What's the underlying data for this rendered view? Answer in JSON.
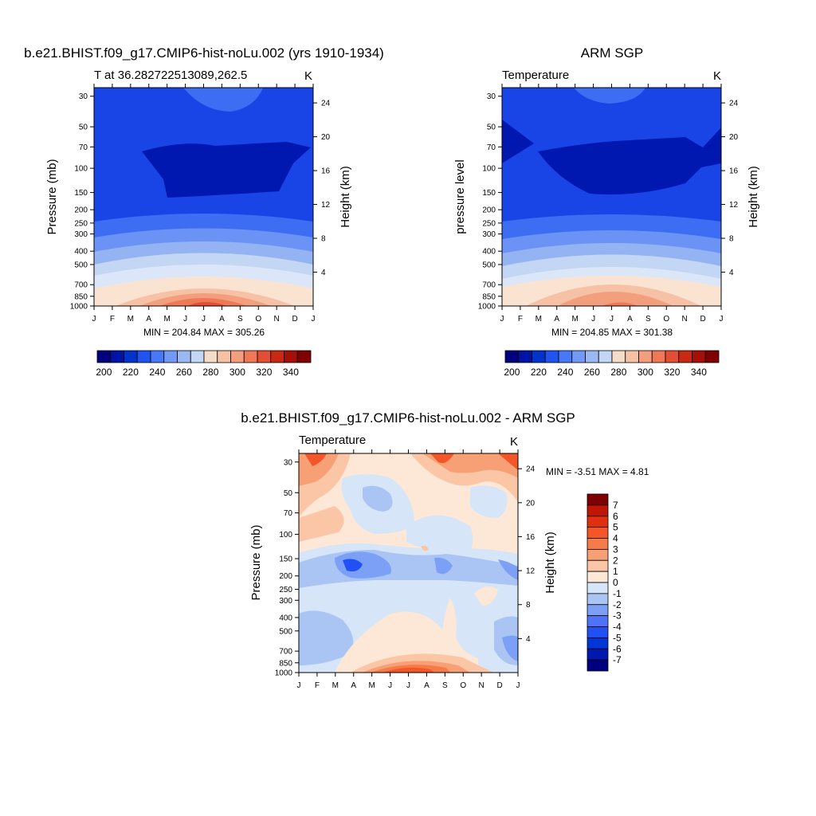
{
  "panels": [
    {
      "title": "b.e21.BHIST.f09_g17.CMIP6-hist-noLu.002 (yrs 1910-1934)",
      "left_label": "T at 36.282722513089,262.5",
      "units": "K",
      "ylabel": "Pressure (mb)",
      "y2label": "Height (km)",
      "minmax": "MIN = 204.84 MAX = 305.26"
    },
    {
      "title": "ARM SGP",
      "left_label": "Temperature",
      "units": "K",
      "ylabel": "pressure level",
      "y2label": "Height (km)",
      "minmax": "MIN = 204.85 MAX = 301.38"
    },
    {
      "title": "b.e21.BHIST.f09_g17.CMIP6-hist-noLu.002 - ARM SGP",
      "left_label": "Temperature",
      "units": "K",
      "ylabel": "Pressure (mb)",
      "y2label": "Height (km)",
      "minmax": "MIN =  -3.51 MAX =   4.81"
    }
  ],
  "chart_data": [
    {
      "type": "heatmap",
      "title": "b.e21.BHIST.f09_g17.CMIP6-hist-noLu.002 (yrs 1910-1934)",
      "subtitle": "T at 36.282722513089,262.5",
      "units": "K",
      "ylabel": "Pressure (mb)",
      "y2label": "Height (km)",
      "x_ticks": [
        "J",
        "F",
        "M",
        "A",
        "M",
        "J",
        "J",
        "A",
        "S",
        "O",
        "N",
        "D",
        "J"
      ],
      "y_ticks": [
        30,
        50,
        70,
        100,
        150,
        200,
        250,
        300,
        400,
        500,
        700,
        850,
        1000
      ],
      "y2_ticks": [
        24,
        20,
        16,
        12,
        8,
        4
      ],
      "y_scale": "log",
      "ylim": [
        1000,
        26
      ],
      "colorbar_ticks": [
        200,
        220,
        240,
        260,
        280,
        300,
        320,
        340
      ],
      "min": 204.84,
      "max": 305.26
    },
    {
      "type": "heatmap",
      "title": "ARM SGP",
      "subtitle": "Temperature",
      "units": "K",
      "ylabel": "pressure level",
      "y2label": "Height (km)",
      "x_ticks": [
        "J",
        "F",
        "M",
        "A",
        "M",
        "J",
        "J",
        "A",
        "S",
        "O",
        "N",
        "D",
        "J"
      ],
      "y_ticks": [
        30,
        50,
        70,
        100,
        150,
        200,
        250,
        300,
        400,
        500,
        700,
        850,
        1000
      ],
      "y2_ticks": [
        24,
        20,
        16,
        12,
        8,
        4
      ],
      "y_scale": "log",
      "ylim": [
        1000,
        26
      ],
      "colorbar_ticks": [
        200,
        220,
        240,
        260,
        280,
        300,
        320,
        340
      ],
      "min": 204.85,
      "max": 301.38
    },
    {
      "type": "heatmap",
      "title": "b.e21.BHIST.f09_g17.CMIP6-hist-noLu.002 - ARM SGP",
      "subtitle": "Temperature",
      "units": "K",
      "ylabel": "Pressure (mb)",
      "y2label": "Height (km)",
      "x_ticks": [
        "J",
        "F",
        "M",
        "A",
        "M",
        "J",
        "J",
        "A",
        "S",
        "O",
        "N",
        "D",
        "J"
      ],
      "y_ticks": [
        30,
        50,
        70,
        100,
        150,
        200,
        250,
        300,
        400,
        500,
        700,
        850,
        1000
      ],
      "y2_ticks": [
        24,
        20,
        16,
        12,
        8,
        4
      ],
      "y_scale": "log",
      "ylim": [
        1000,
        26
      ],
      "colorbar_ticks": [
        7,
        6,
        5,
        4,
        3,
        2,
        1,
        0,
        -1,
        -2,
        -3,
        -4,
        -5,
        -6,
        -7
      ],
      "min": -3.51,
      "max": 4.81
    }
  ],
  "colors": {
    "abs_scale": [
      "#00007f",
      "#0013a6",
      "#0132c9",
      "#2054f1",
      "#4877f7",
      "#7199f5",
      "#9ab8f2",
      "#c3d6f3",
      "#f5dcc9",
      "#f6c1a4",
      "#f39f7d",
      "#ef7856",
      "#e44e34",
      "#c92913",
      "#a50f0a",
      "#7f0000"
    ],
    "diff_scale": [
      "#00007f",
      "#0018b0",
      "#0035d8",
      "#2150f5",
      "#4d74f6",
      "#7ba0f5",
      "#aac5f4",
      "#d6e6f8",
      "#fde7d6",
      "#fbc6a6",
      "#f7a075",
      "#f67b4a",
      "#f45628",
      "#e0300f",
      "#bf1606",
      "#7f0000"
    ]
  }
}
